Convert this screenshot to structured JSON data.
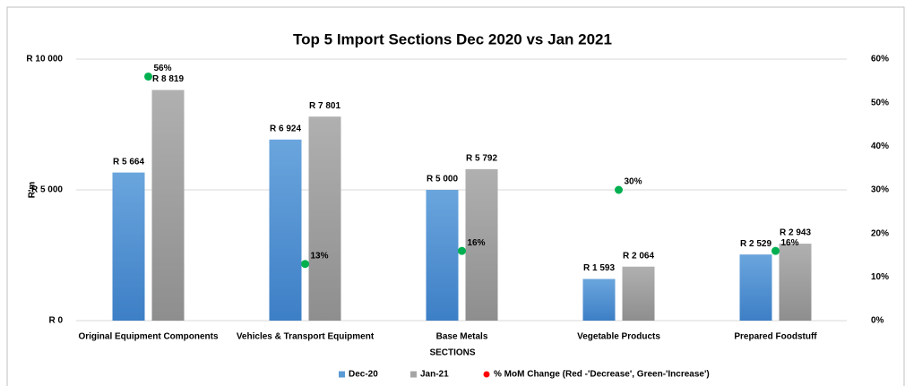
{
  "chart_data": {
    "type": "bar",
    "title": "Top 5 Import Sections Dec 2020 vs Jan 2021",
    "x_label": "SECTIONS",
    "y_label": "R'm",
    "categories": [
      "Original Equipment Components",
      "Vehicles & Transport Equipment",
      "Base Metals",
      "Vegetable Products",
      "Prepared Foodstuff"
    ],
    "series": [
      {
        "name": "Dec-20",
        "type": "bar",
        "color": "#5b9bd5",
        "values": [
          5664,
          6924,
          5000,
          1593,
          2529
        ],
        "value_labels": [
          "R 5 664",
          "R 6 924",
          "R 5 000",
          "R 1 593",
          "R 2 529"
        ]
      },
      {
        "name": "Jan-21",
        "type": "bar",
        "color": "#a5a5a5",
        "values": [
          8819,
          7801,
          5792,
          2064,
          2943
        ],
        "value_labels": [
          "R 8 819",
          "R 7 801",
          "R 5 792",
          "R 2 064",
          "R 2 943"
        ]
      },
      {
        "name": "% MoM Change (Red -'Decrease', Green-'Increase')",
        "type": "scatter",
        "axis": "y2",
        "color": "#00b050",
        "legend_color": "#ff0000",
        "values": [
          56,
          13,
          16,
          30,
          16
        ],
        "value_labels": [
          "56%",
          "13%",
          "16%",
          "30%",
          "16%"
        ]
      }
    ],
    "ylim": [
      0,
      10000
    ],
    "yticks": [
      {
        "value": 0,
        "label": "R 0"
      },
      {
        "value": 5000,
        "label": "R 5 000"
      },
      {
        "value": 10000,
        "label": "R 10 000"
      }
    ],
    "y2lim": [
      0,
      60
    ],
    "y2ticks": [
      {
        "value": 0,
        "label": "0%"
      },
      {
        "value": 10,
        "label": "10%"
      },
      {
        "value": 20,
        "label": "20%"
      },
      {
        "value": 30,
        "label": "30%"
      },
      {
        "value": 40,
        "label": "40%"
      },
      {
        "value": 50,
        "label": "50%"
      },
      {
        "value": 60,
        "label": "60%"
      }
    ],
    "grid": true,
    "legend": "bottom"
  }
}
